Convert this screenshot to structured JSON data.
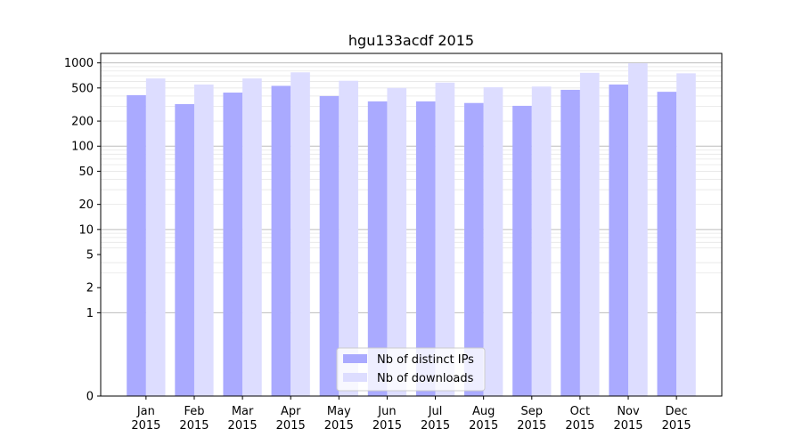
{
  "chart_data": {
    "type": "bar",
    "title": "hgu133acdf 2015",
    "xlabel": "",
    "ylabel": "",
    "y_scale": "symlog",
    "ylim": [
      0,
      1300
    ],
    "grid": true,
    "legend_position": "lower-center",
    "y_tick_labels": [
      "0",
      "1",
      "2",
      "5",
      "10",
      "20",
      "50",
      "100",
      "200",
      "500",
      "1000"
    ],
    "categories": [
      "Jan 2015",
      "Feb 2015",
      "Mar 2015",
      "Apr 2015",
      "May 2015",
      "Jun 2015",
      "Jul 2015",
      "Aug 2015",
      "Sep 2015",
      "Oct 2015",
      "Nov 2015",
      "Dec 2015"
    ],
    "category_lines": [
      [
        "Jan",
        "2015"
      ],
      [
        "Feb",
        "2015"
      ],
      [
        "Mar",
        "2015"
      ],
      [
        "Apr",
        "2015"
      ],
      [
        "May",
        "2015"
      ],
      [
        "Jun",
        "2015"
      ],
      [
        "Jul",
        "2015"
      ],
      [
        "Aug",
        "2015"
      ],
      [
        "Sep",
        "2015"
      ],
      [
        "Oct",
        "2015"
      ],
      [
        "Nov",
        "2015"
      ],
      [
        "Dec",
        "2015"
      ]
    ],
    "series": [
      {
        "name": "Nb of distinct IPs",
        "color": "#aaaaff",
        "values": [
          410,
          320,
          440,
          530,
          400,
          345,
          345,
          330,
          305,
          475,
          550,
          450
        ]
      },
      {
        "name": "Nb of downloads",
        "color": "#ddddff",
        "values": [
          650,
          550,
          650,
          770,
          610,
          500,
          580,
          510,
          520,
          760,
          990,
          750
        ]
      }
    ]
  }
}
